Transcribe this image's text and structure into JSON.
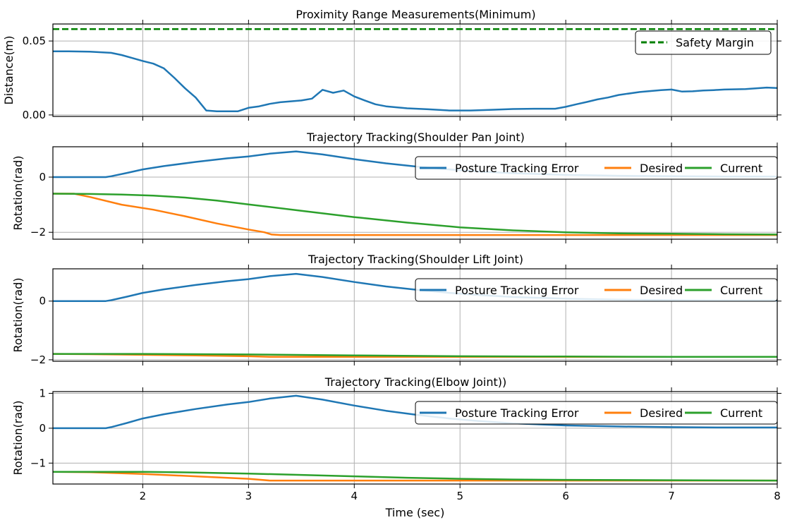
{
  "colors": {
    "blue": "#1f77b4",
    "orange": "#ff7f0e",
    "green": "#2ca02c",
    "safety": "#008000",
    "grid": "#b0b0b0"
  },
  "xlabel": "Time (sec)",
  "xlim": [
    1.15,
    8.0
  ],
  "xticks": [
    2,
    3,
    4,
    5,
    6,
    7,
    8
  ],
  "chart_data": [
    {
      "type": "line",
      "title": "Proximity Range Measurements(Minimum)",
      "ylabel": "Distance(m)",
      "ylim": [
        -0.001,
        0.0615
      ],
      "yticks": [
        0.0,
        0.05
      ],
      "ytick_labels": [
        "0.00",
        "0.05"
      ],
      "grid": true,
      "legend_position": "top-right",
      "series": [
        {
          "color_key": "blue",
          "x": [
            1.15,
            1.3,
            1.5,
            1.7,
            1.8,
            1.9,
            2.0,
            2.1,
            2.2,
            2.3,
            2.4,
            2.5,
            2.6,
            2.7,
            2.8,
            2.9,
            3.0,
            3.1,
            3.2,
            3.3,
            3.4,
            3.5,
            3.6,
            3.7,
            3.8,
            3.9,
            4.0,
            4.1,
            4.2,
            4.3,
            4.5,
            4.7,
            4.9,
            5.1,
            5.3,
            5.5,
            5.7,
            5.9,
            6.0,
            6.1,
            6.2,
            6.3,
            6.4,
            6.5,
            6.7,
            6.9,
            7.0,
            7.1,
            7.2,
            7.3,
            7.4,
            7.5,
            7.7,
            7.9,
            8.0
          ],
          "values": [
            0.043,
            0.043,
            0.0428,
            0.042,
            0.0405,
            0.0385,
            0.0365,
            0.0347,
            0.0315,
            0.025,
            0.018,
            0.0118,
            0.003,
            0.0025,
            0.0025,
            0.0025,
            0.0048,
            0.0058,
            0.0075,
            0.0086,
            0.0092,
            0.0098,
            0.011,
            0.017,
            0.015,
            0.0165,
            0.0125,
            0.0098,
            0.0072,
            0.0058,
            0.0045,
            0.0038,
            0.003,
            0.003,
            0.0035,
            0.004,
            0.0042,
            0.0042,
            0.0055,
            0.0072,
            0.0088,
            0.0105,
            0.0118,
            0.0135,
            0.0155,
            0.0168,
            0.0172,
            0.0158,
            0.016,
            0.0165,
            0.0168,
            0.0172,
            0.0175,
            0.0185,
            0.0182
          ]
        },
        {
          "name": "Safety Margin",
          "color_key": "safety",
          "dashed": true,
          "x": [
            1.15,
            8.0
          ],
          "values": [
            0.058,
            0.058
          ]
        }
      ]
    },
    {
      "type": "line",
      "title": "Trajectory Tracking(Shoulder Pan Joint)",
      "ylabel": "Rotation(rad)",
      "ylim": [
        -2.25,
        1.1
      ],
      "yticks": [
        -2,
        0
      ],
      "ytick_labels": [
        "−2",
        "0"
      ],
      "grid": true,
      "legend_position": "upper-right",
      "series": [
        {
          "name": "Posture Tracking Error",
          "color_key": "blue",
          "x": [
            1.15,
            1.5,
            1.65,
            1.7,
            1.85,
            2.0,
            2.2,
            2.5,
            2.8,
            3.0,
            3.2,
            3.45,
            3.7,
            4.0,
            4.3,
            4.6,
            4.9,
            5.2,
            5.5,
            6.0,
            6.5,
            7.0,
            7.5,
            8.0
          ],
          "values": [
            0.0,
            0.0,
            0.0,
            0.03,
            0.15,
            0.28,
            0.4,
            0.55,
            0.68,
            0.75,
            0.85,
            0.93,
            0.82,
            0.65,
            0.5,
            0.38,
            0.28,
            0.2,
            0.14,
            0.08,
            0.05,
            0.03,
            0.02,
            0.02
          ]
        },
        {
          "name": "Desired",
          "color_key": "orange",
          "x": [
            1.15,
            1.35,
            1.5,
            1.8,
            2.1,
            2.4,
            2.7,
            3.0,
            3.15,
            3.22,
            3.3,
            4.0,
            5.0,
            6.0,
            7.0,
            8.0
          ],
          "values": [
            -0.6,
            -0.6,
            -0.72,
            -1.0,
            -1.18,
            -1.42,
            -1.68,
            -1.9,
            -2.0,
            -2.08,
            -2.1,
            -2.1,
            -2.1,
            -2.1,
            -2.1,
            -2.1
          ]
        },
        {
          "name": "Current",
          "color_key": "green",
          "x": [
            1.15,
            1.5,
            1.8,
            2.1,
            2.4,
            2.7,
            3.0,
            3.5,
            4.0,
            4.5,
            5.0,
            5.5,
            6.0,
            6.5,
            7.0,
            7.5,
            8.0
          ],
          "values": [
            -0.6,
            -0.61,
            -0.63,
            -0.67,
            -0.74,
            -0.85,
            -0.99,
            -1.22,
            -1.45,
            -1.65,
            -1.82,
            -1.93,
            -2.0,
            -2.04,
            -2.05,
            -2.07,
            -2.08
          ]
        }
      ]
    },
    {
      "type": "line",
      "title": "Trajectory Tracking(Shoulder Lift Joint)",
      "ylabel": "Rotation(rad)",
      "ylim": [
        -2.05,
        1.1
      ],
      "yticks": [
        -2,
        0
      ],
      "ytick_labels": [
        "−2",
        "0"
      ],
      "grid": true,
      "legend_position": "upper-right",
      "series": [
        {
          "name": "Posture Tracking Error",
          "color_key": "blue",
          "x": [
            1.15,
            1.5,
            1.65,
            1.7,
            1.85,
            2.0,
            2.2,
            2.5,
            2.8,
            3.0,
            3.2,
            3.45,
            3.7,
            4.0,
            4.3,
            4.6,
            4.9,
            5.2,
            5.5,
            6.0,
            6.5,
            7.0,
            7.5,
            8.0
          ],
          "values": [
            0.0,
            0.0,
            0.0,
            0.03,
            0.15,
            0.28,
            0.4,
            0.55,
            0.68,
            0.75,
            0.85,
            0.93,
            0.82,
            0.65,
            0.5,
            0.38,
            0.28,
            0.2,
            0.14,
            0.08,
            0.05,
            0.03,
            0.02,
            0.02
          ]
        },
        {
          "name": "Desired",
          "color_key": "orange",
          "x": [
            1.15,
            1.5,
            2.0,
            2.5,
            3.0,
            3.2,
            3.5,
            4.0,
            5.0,
            6.0,
            7.0,
            8.0
          ],
          "values": [
            -1.8,
            -1.81,
            -1.83,
            -1.85,
            -1.88,
            -1.9,
            -1.9,
            -1.9,
            -1.9,
            -1.9,
            -1.9,
            -1.9
          ]
        },
        {
          "name": "Current",
          "color_key": "green",
          "x": [
            1.15,
            2.0,
            3.0,
            4.0,
            5.0,
            6.0,
            7.0,
            8.0
          ],
          "values": [
            -1.8,
            -1.8,
            -1.82,
            -1.85,
            -1.88,
            -1.89,
            -1.9,
            -1.9
          ]
        }
      ]
    },
    {
      "type": "line",
      "title": "Trajectory Tracking(Elbow Joint))",
      "ylabel": "Rotation(rad)",
      "ylim": [
        -1.6,
        1.05
      ],
      "yticks": [
        -1,
        0,
        1
      ],
      "ytick_labels": [
        "−1",
        "0",
        "1"
      ],
      "grid": true,
      "legend_position": "upper-right",
      "series": [
        {
          "name": "Posture Tracking Error",
          "color_key": "blue",
          "x": [
            1.15,
            1.5,
            1.65,
            1.7,
            1.85,
            2.0,
            2.2,
            2.5,
            2.8,
            3.0,
            3.2,
            3.45,
            3.7,
            4.0,
            4.3,
            4.6,
            4.9,
            5.2,
            5.5,
            6.0,
            6.5,
            7.0,
            7.5,
            8.0
          ],
          "values": [
            0.0,
            0.0,
            0.0,
            0.03,
            0.15,
            0.28,
            0.4,
            0.55,
            0.68,
            0.75,
            0.85,
            0.93,
            0.82,
            0.65,
            0.5,
            0.38,
            0.28,
            0.2,
            0.14,
            0.08,
            0.05,
            0.03,
            0.02,
            0.02
          ]
        },
        {
          "name": "Desired",
          "color_key": "orange",
          "x": [
            1.15,
            1.5,
            2.0,
            2.5,
            3.0,
            3.2,
            3.5,
            4.0,
            5.0,
            6.0,
            7.0,
            8.0
          ],
          "values": [
            -1.25,
            -1.26,
            -1.31,
            -1.38,
            -1.45,
            -1.5,
            -1.5,
            -1.5,
            -1.5,
            -1.5,
            -1.5,
            -1.5
          ]
        },
        {
          "name": "Current",
          "color_key": "green",
          "x": [
            1.15,
            2.0,
            2.5,
            3.0,
            3.5,
            4.0,
            4.5,
            5.0,
            5.5,
            6.0,
            7.0,
            8.0
          ],
          "values": [
            -1.25,
            -1.25,
            -1.27,
            -1.3,
            -1.34,
            -1.38,
            -1.42,
            -1.45,
            -1.47,
            -1.48,
            -1.49,
            -1.5
          ]
        }
      ]
    }
  ]
}
